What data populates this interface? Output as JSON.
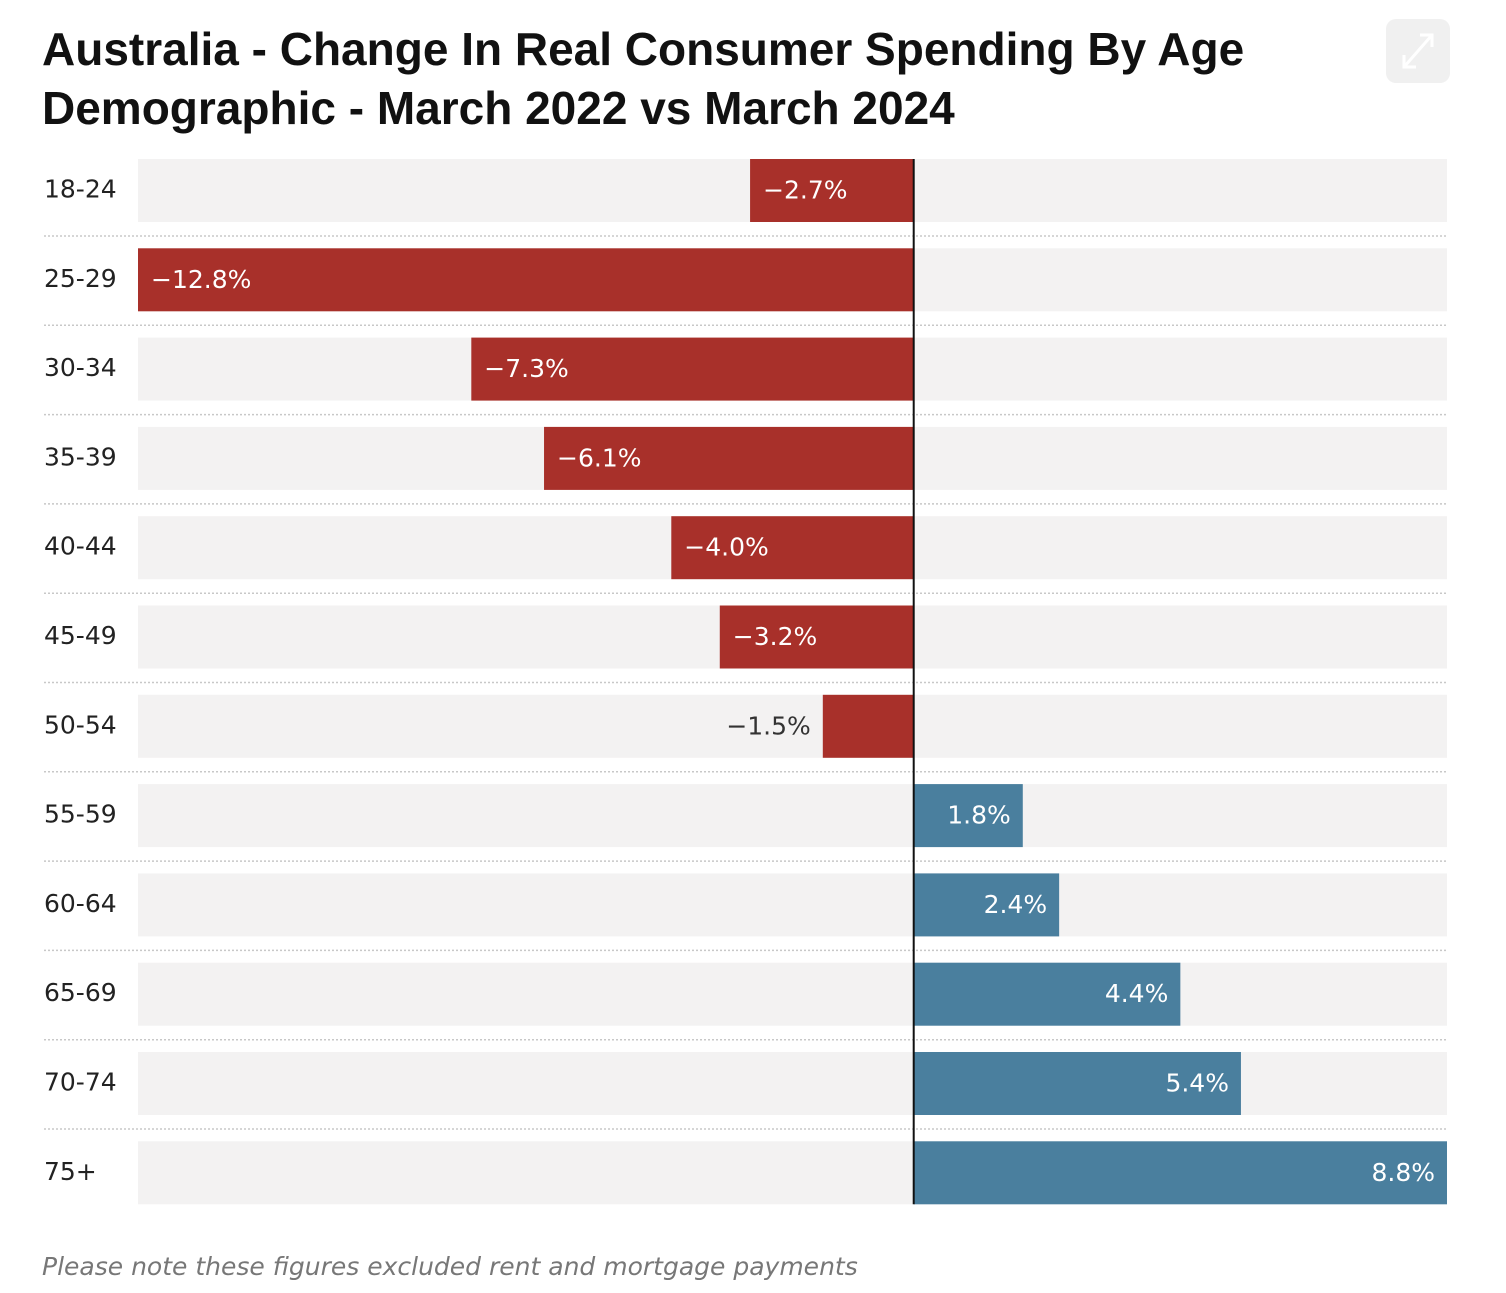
{
  "chart_data": {
    "type": "bar",
    "orientation": "horizontal",
    "title": "Australia - Change In Real Consumer Spending By Age Demographic - March 2022 vs March 2024",
    "categories": [
      "18-24",
      "25-29",
      "30-34",
      "35-39",
      "40-44",
      "45-49",
      "50-54",
      "55-59",
      "60-64",
      "65-69",
      "70-74",
      "75+"
    ],
    "values": [
      -2.7,
      -12.8,
      -7.3,
      -6.1,
      -4.0,
      -3.2,
      -1.5,
      1.8,
      2.4,
      4.4,
      5.4,
      8.8
    ],
    "value_labels": [
      "−2.7%",
      "−12.8%",
      "−7.3%",
      "−6.1%",
      "−4.0%",
      "−3.2%",
      "−1.5%",
      "1.8%",
      "2.4%",
      "4.4%",
      "5.4%",
      "8.8%"
    ],
    "negative_color": "#a8302a",
    "positive_color": "#4a7f9e",
    "xlim": [
      -12.8,
      8.8
    ],
    "note": "Please note these figures excluded rent and mortgage payments"
  }
}
